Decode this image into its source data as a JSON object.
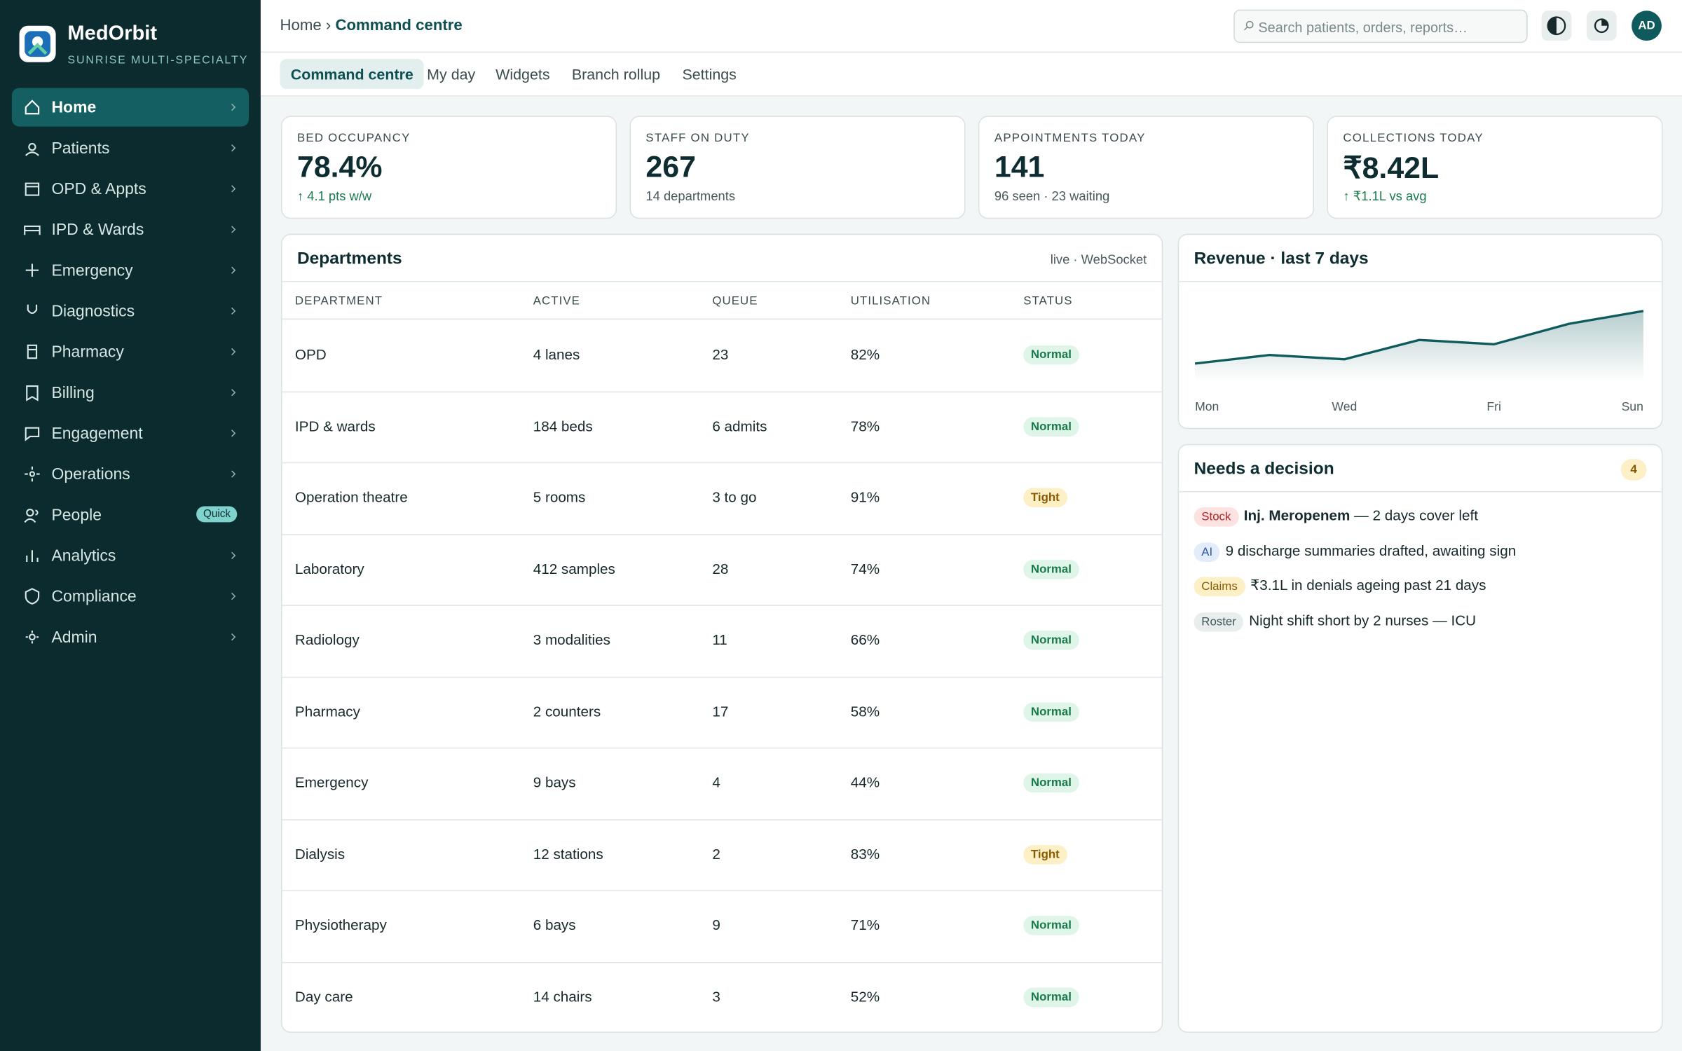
{
  "sidebar": {
    "brand": "MedOrbit",
    "subtitle": "SUNRISE MULTI-SPECIALTY",
    "items": [
      {
        "label": "Home"
      },
      {
        "label": "Patients"
      },
      {
        "label": "OPD & Appts"
      },
      {
        "label": "IPD & Wards"
      },
      {
        "label": "Emergency"
      },
      {
        "label": "Diagnostics"
      },
      {
        "label": "Pharmacy"
      },
      {
        "label": "Billing"
      },
      {
        "label": "Engagement"
      },
      {
        "label": "Operations"
      },
      {
        "label": "People",
        "badge": "Quick"
      },
      {
        "label": "Analytics"
      },
      {
        "label": "Compliance"
      },
      {
        "label": "Admin"
      }
    ]
  },
  "header": {
    "breadcrumb_root": "Home",
    "breadcrumb_sep": "›",
    "breadcrumb_current": "Command centre",
    "search_placeholder": "Search patients, orders, reports…",
    "avatar": "AD"
  },
  "tabs": [
    "Command centre",
    "My day",
    "Widgets",
    "Branch rollup",
    "Settings"
  ],
  "kpis": [
    {
      "label": "BED OCCUPANCY",
      "value": "78.4%",
      "note": "↑ 4.1 pts w/w",
      "note_color": "#1a7a4c"
    },
    {
      "label": "STAFF ON DUTY",
      "value": "267",
      "note": "14 departments",
      "note_color": "#4a5a5c"
    },
    {
      "label": "APPOINTMENTS TODAY",
      "value": "141",
      "note": "96 seen · 23 waiting",
      "note_color": "#4a5a5c"
    },
    {
      "label": "COLLECTIONS TODAY",
      "value": "₹8.42L",
      "note": "↑ ₹1.1L vs avg",
      "note_color": "#1a7a4c"
    }
  ],
  "departments": {
    "title": "Departments",
    "meta": "live · WebSocket",
    "columns": [
      "DEPARTMENT",
      "ACTIVE",
      "QUEUE",
      "UTILISATION",
      "STATUS"
    ],
    "rows": [
      [
        "OPD",
        "4 lanes",
        "23",
        "82%",
        "Normal"
      ],
      [
        "IPD & wards",
        "184 beds",
        "6 admits",
        "78%",
        "Normal"
      ],
      [
        "Operation theatre",
        "5 rooms",
        "3 to go",
        "91%",
        "Tight"
      ],
      [
        "Laboratory",
        "412 samples",
        "28",
        "74%",
        "Normal"
      ],
      [
        "Radiology",
        "3 modalities",
        "11",
        "66%",
        "Normal"
      ],
      [
        "Pharmacy",
        "2 counters",
        "17",
        "58%",
        "Normal"
      ],
      [
        "Emergency",
        "9 bays",
        "4",
        "44%",
        "Normal"
      ],
      [
        "Dialysis",
        "12 stations",
        "2",
        "83%",
        "Tight"
      ],
      [
        "Physiotherapy",
        "6 bays",
        "9",
        "71%",
        "Normal"
      ],
      [
        "Day care",
        "14 chairs",
        "3",
        "52%",
        "Normal"
      ]
    ],
    "status_styles": {
      "Normal": {
        "bg": "#def5e8",
        "color": "#1a7a4c"
      },
      "Tight": {
        "bg": "#fdf0c6",
        "color": "#8a5a00"
      }
    }
  },
  "revenue_chart": {
    "type": "line",
    "title": "Revenue · last 7 days",
    "categories": [
      "Mon",
      null,
      "Wed",
      null,
      "Fri",
      null,
      "Sun"
    ],
    "values": [
      17,
      25,
      21,
      39,
      35,
      54,
      66
    ],
    "ylim": [
      0,
      85
    ],
    "color": "#0e5a5c"
  },
  "decisions": {
    "title": "Needs a decision",
    "count": 4,
    "items": [
      {
        "tag": "Stock",
        "tag_bg": "#fde2e2",
        "tag_color": "#b42323",
        "strong": "Inj. Meropenem",
        "text": "— 2 days cover left"
      },
      {
        "tag": "AI",
        "tag_bg": "#e3ecfb",
        "tag_color": "#2f58a8",
        "text": "9 discharge summaries drafted, awaiting sign"
      },
      {
        "tag": "Claims",
        "tag_bg": "#fdf0c6",
        "tag_color": "#8a5a00",
        "text": "₹3.1L in denials ageing past 21 days"
      },
      {
        "tag": "Roster",
        "tag_bg": "#e8eeee",
        "tag_color": "#3d5557",
        "text": "Night shift short by 2 nurses — ICU"
      }
    ]
  }
}
